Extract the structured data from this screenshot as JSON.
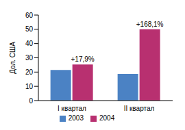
{
  "chart_data": {
    "type": "bar",
    "ylabel": "Дол. США",
    "categories": [
      "I квартал",
      "II квартал"
    ],
    "series": [
      {
        "name": "2003",
        "color": "#4b82c4",
        "values": [
          21.5,
          18.7
        ]
      },
      {
        "name": "2004",
        "color": "#b83070",
        "values": [
          25.3,
          50.1
        ],
        "annotations": [
          "+17,9%",
          "+168,1%"
        ]
      }
    ],
    "ylim": [
      0,
      60
    ],
    "yticks": [
      0,
      10,
      20,
      30,
      40,
      50,
      60
    ],
    "grid": false,
    "legend": "bottom"
  }
}
